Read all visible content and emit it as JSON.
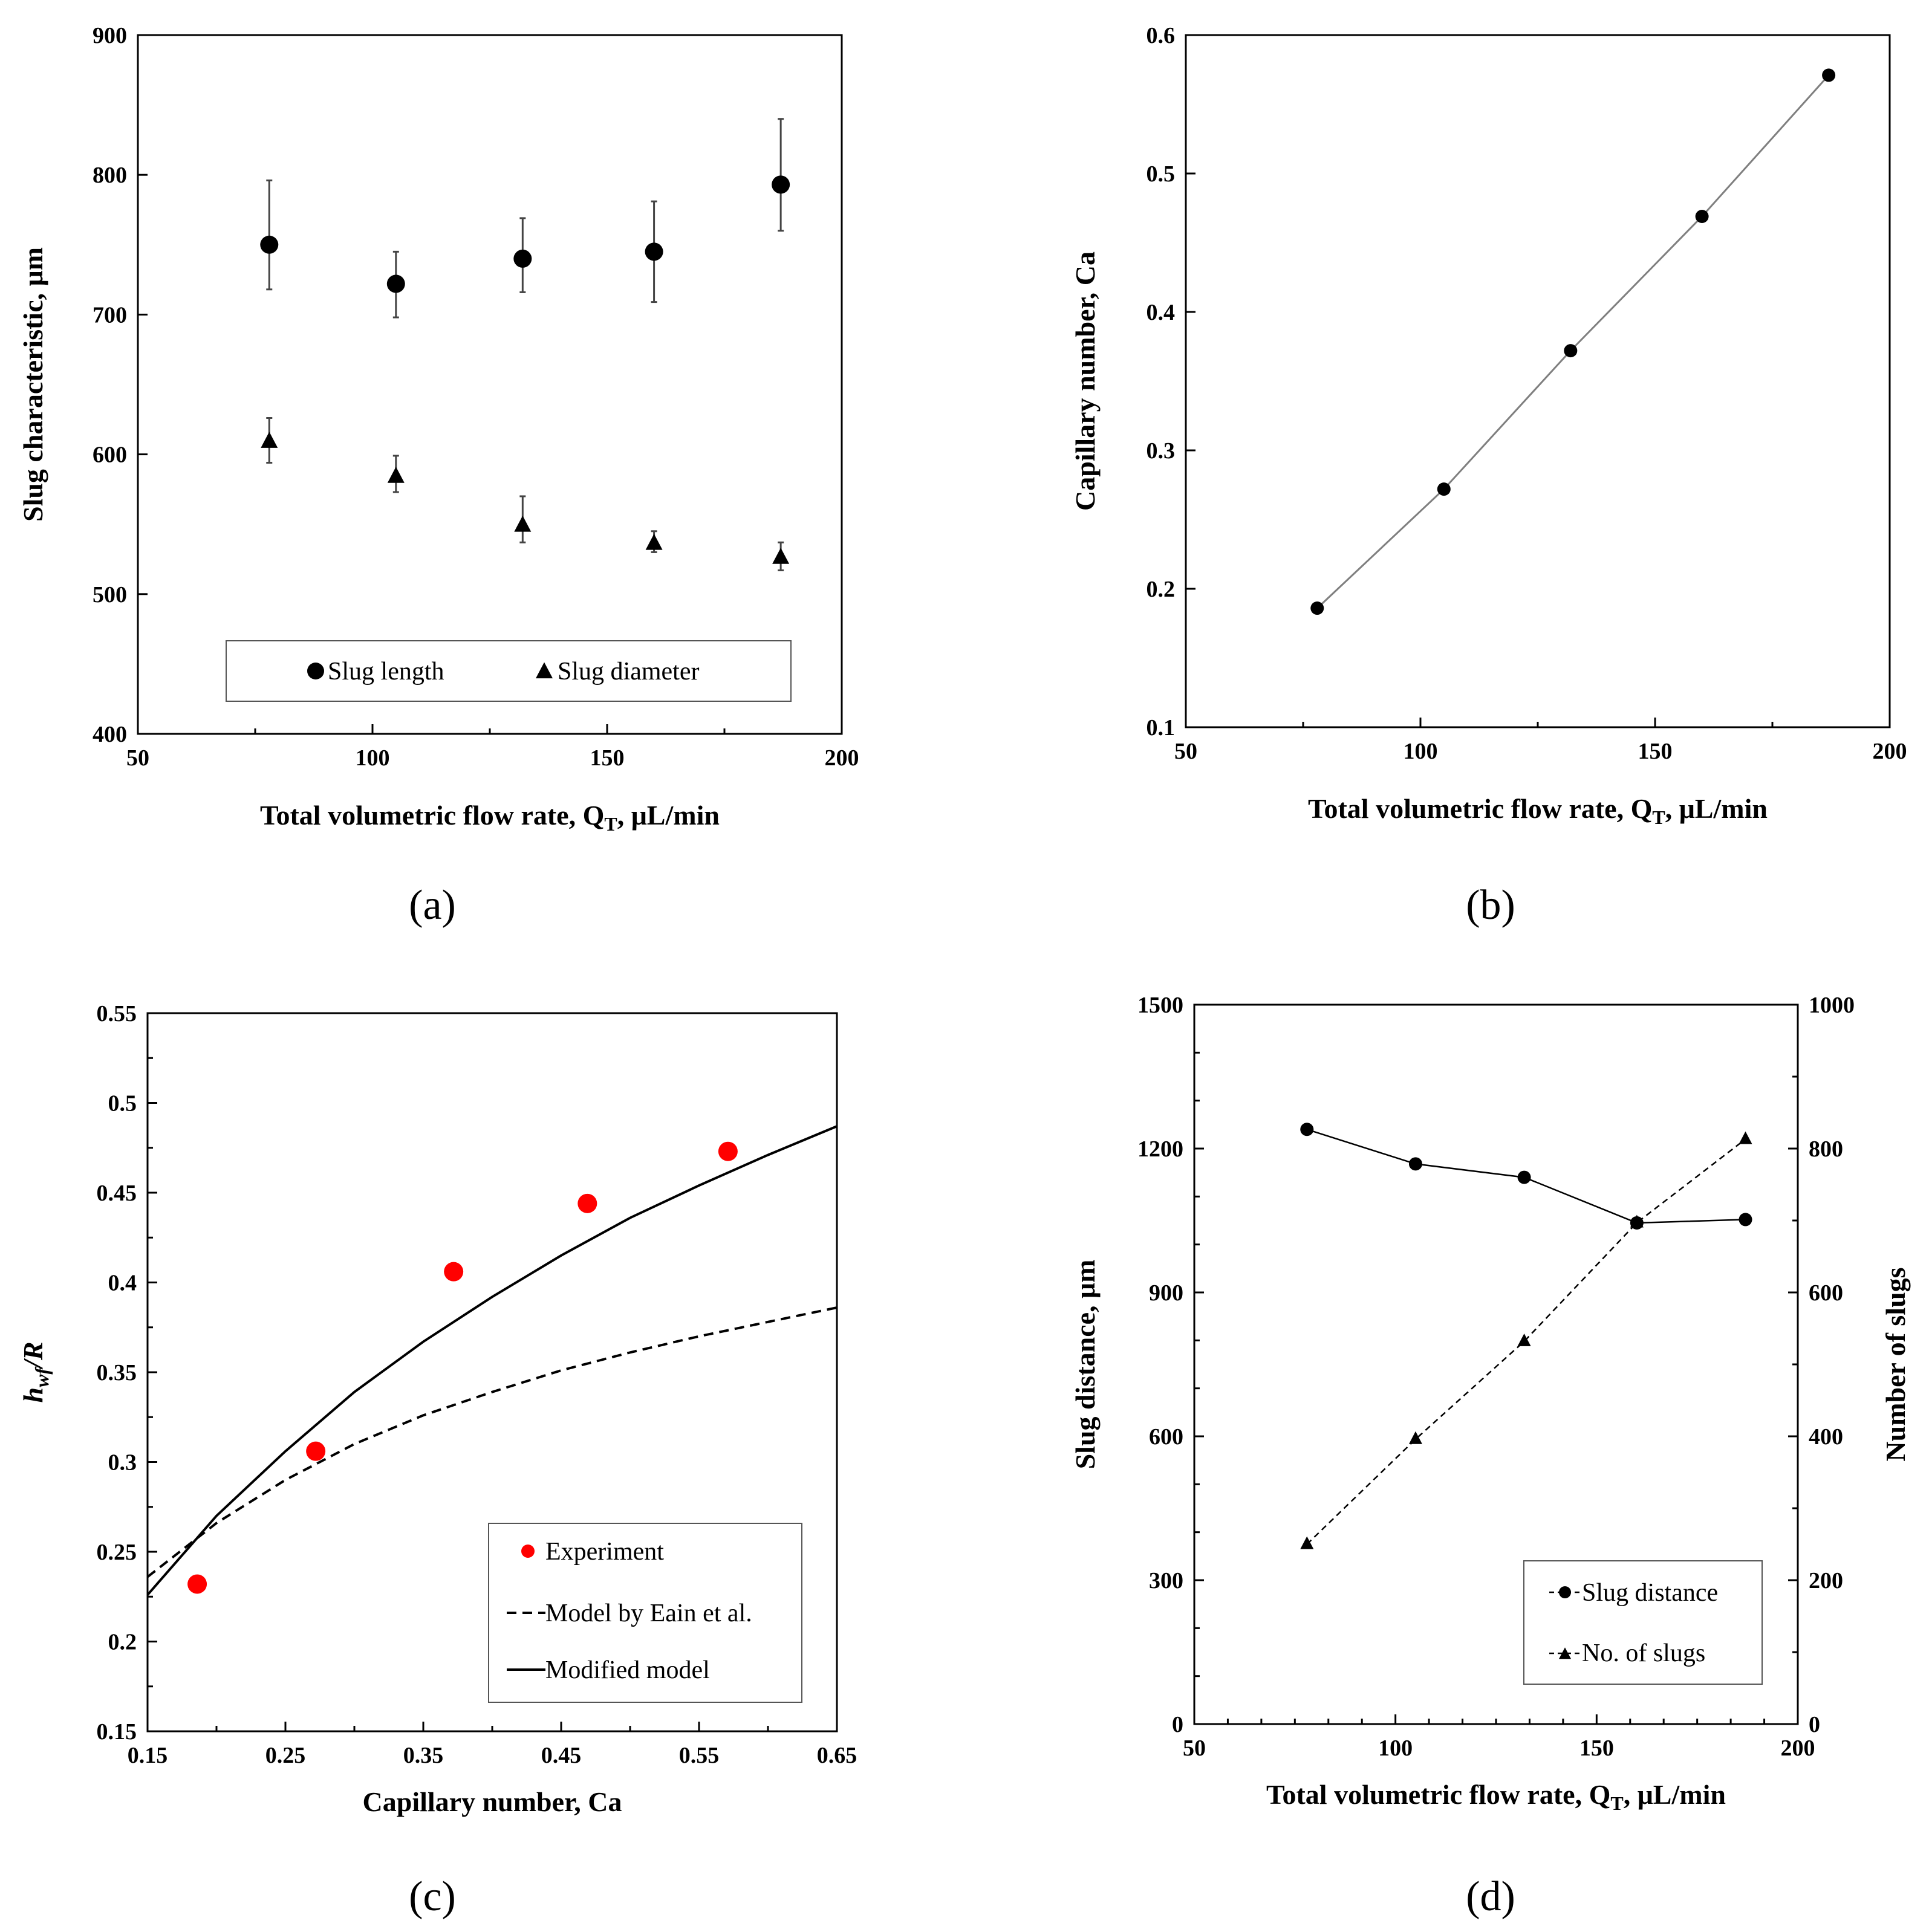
{
  "chart_data": [
    {
      "id": "a",
      "panel_label": "(a)",
      "type": "scatter",
      "xlabel": "Total volumetric  flow rate, Q",
      "xlabel_sub": "T",
      "xlabel_suffix": ", μL/min",
      "ylabel": "Slug characteristic,  μm",
      "xlim": [
        50,
        200
      ],
      "ylim": [
        400,
        900
      ],
      "xticks": [
        "50",
        "100",
        "150",
        "200"
      ],
      "yticks": [
        "400",
        "500",
        "600",
        "700",
        "800",
        "900"
      ],
      "legend_position": "bottom-center",
      "series": [
        {
          "name": "Slug length",
          "marker": "circle",
          "x": [
            78,
            105,
            132,
            160,
            187
          ],
          "y": [
            750,
            722,
            740,
            745,
            793
          ],
          "err_low": [
            718,
            698,
            716,
            709,
            760
          ],
          "err_high": [
            796,
            745,
            769,
            781,
            840
          ]
        },
        {
          "name": "Slug diameter",
          "marker": "triangle",
          "x": [
            78,
            105,
            132,
            160,
            187
          ],
          "y": [
            609,
            584,
            549,
            536,
            526
          ],
          "err_low": [
            594,
            573,
            537,
            530,
            517
          ],
          "err_high": [
            626,
            599,
            570,
            545,
            537
          ]
        }
      ]
    },
    {
      "id": "b",
      "panel_label": "(b)",
      "type": "line",
      "xlabel": "Total volumetric flow rate, Q",
      "xlabel_sub": "T",
      "xlabel_suffix": ", μL/min",
      "ylabel": "Capillary number, Ca",
      "xlim": [
        50,
        200
      ],
      "ylim": [
        0.1,
        0.6
      ],
      "xticks": [
        "50",
        "100",
        "150",
        "200"
      ],
      "yticks": [
        "0.1",
        "0.2",
        "0.3",
        "0.4",
        "0.5",
        "0.6"
      ],
      "series": [
        {
          "name": "Capillary number",
          "marker": "circle",
          "x": [
            78,
            105,
            132,
            160,
            187
          ],
          "y": [
            0.186,
            0.272,
            0.372,
            0.469,
            0.571
          ]
        }
      ]
    },
    {
      "id": "c",
      "panel_label": "(c)",
      "type": "line",
      "xlabel": "Capillary number, Ca",
      "ylabel_main": "h",
      "ylabel_sub": "wf",
      "ylabel_suffix": "/R",
      "xlim": [
        0.15,
        0.65
      ],
      "ylim": [
        0.15,
        0.55
      ],
      "xticks": [
        "0.15",
        "0.25",
        "0.35",
        "0.45",
        "0.55",
        "0.65"
      ],
      "yticks": [
        "0.15",
        "0.2",
        "0.25",
        "0.3",
        "0.35",
        "0.4",
        "0.45",
        "0.5",
        "0.55"
      ],
      "legend_position": "bottom-right",
      "series": [
        {
          "name": "Experiment",
          "marker": "circle",
          "color": "#ff0000",
          "x": [
            0.186,
            0.272,
            0.372,
            0.469,
            0.571
          ],
          "y": [
            0.232,
            0.306,
            0.406,
            0.444,
            0.473
          ]
        },
        {
          "name": "Model by Eain et al.",
          "style": "dashed",
          "x": [
            0.15,
            0.2,
            0.25,
            0.3,
            0.35,
            0.4,
            0.45,
            0.5,
            0.55,
            0.6,
            0.65
          ],
          "y": [
            0.236,
            0.266,
            0.29,
            0.31,
            0.326,
            0.339,
            0.351,
            0.361,
            0.37,
            0.378,
            0.386
          ]
        },
        {
          "name": "Modified model",
          "style": "solid",
          "x": [
            0.15,
            0.2,
            0.25,
            0.3,
            0.35,
            0.4,
            0.45,
            0.5,
            0.55,
            0.6,
            0.65
          ],
          "y": [
            0.226,
            0.27,
            0.306,
            0.339,
            0.367,
            0.392,
            0.415,
            0.436,
            0.454,
            0.471,
            0.487
          ]
        }
      ]
    },
    {
      "id": "d",
      "panel_label": "(d)",
      "type": "line",
      "xlabel": "Total volumetric flow rate, Q",
      "xlabel_sub": "T",
      "xlabel_suffix": ", μL/min",
      "ylabel": "Slug distance, μm",
      "y2label": "Number of slugs",
      "xlim": [
        50,
        200
      ],
      "ylim": [
        0,
        1500
      ],
      "y2lim": [
        0,
        1000
      ],
      "xticks": [
        "50",
        "100",
        "150",
        "200"
      ],
      "yticks": [
        "0",
        "300",
        "600",
        "900",
        "1200",
        "1500"
      ],
      "y2ticks": [
        "0",
        "200",
        "400",
        "600",
        "800",
        "1000"
      ],
      "legend_position": "bottom-right",
      "series": [
        {
          "name": "Slug distance",
          "marker": "circle",
          "style": "solid",
          "axis": "left",
          "x": [
            78,
            105,
            132,
            160,
            187
          ],
          "y": [
            1240,
            1168,
            1140,
            1045,
            1052
          ]
        },
        {
          "name": "No. of slugs",
          "marker": "triangle",
          "style": "dashed",
          "axis": "right",
          "x": [
            78,
            105,
            132,
            160,
            187
          ],
          "y": [
            250,
            396,
            532,
            697,
            813
          ]
        }
      ]
    }
  ]
}
